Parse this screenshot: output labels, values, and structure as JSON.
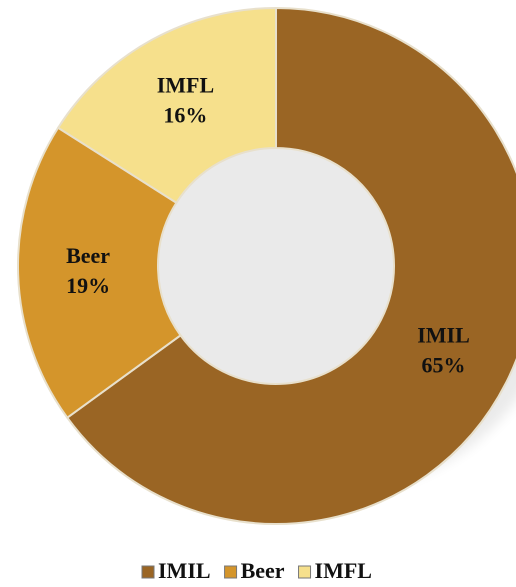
{
  "chart_data": {
    "type": "donut",
    "categories": [
      "IMIL",
      "Beer",
      "IMFL"
    ],
    "values": [
      65,
      19,
      16
    ],
    "value_labels": [
      "65%",
      "19%",
      "16%"
    ],
    "colors": [
      "#9a6524",
      "#d4952b",
      "#f6e08c"
    ],
    "legend": "bottom"
  }
}
